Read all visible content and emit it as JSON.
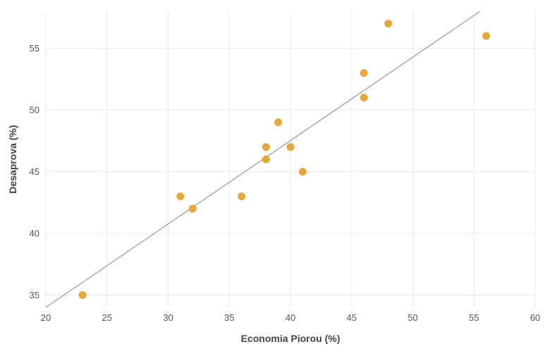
{
  "chart_data": {
    "type": "scatter",
    "title": "",
    "xlabel": "Economia Piorou (%)",
    "ylabel": "Desaprova (%)",
    "xlim": [
      20,
      60
    ],
    "ylim": [
      34,
      58
    ],
    "x_ticks": [
      20,
      25,
      30,
      35,
      40,
      45,
      50,
      55,
      60
    ],
    "y_ticks": [
      35,
      40,
      45,
      50,
      55
    ],
    "grid": true,
    "point_color": "#E8A838",
    "trendline_color": "#999999",
    "trendline": {
      "x": [
        20,
        55.5
      ],
      "y": [
        34,
        58
      ]
    },
    "series": [
      {
        "points": [
          {
            "x": 23,
            "y": 35
          },
          {
            "x": 31,
            "y": 43
          },
          {
            "x": 32,
            "y": 42
          },
          {
            "x": 36,
            "y": 43
          },
          {
            "x": 38,
            "y": 46
          },
          {
            "x": 38,
            "y": 47
          },
          {
            "x": 39,
            "y": 49
          },
          {
            "x": 40,
            "y": 47
          },
          {
            "x": 41,
            "y": 45
          },
          {
            "x": 46,
            "y": 51
          },
          {
            "x": 46,
            "y": 53
          },
          {
            "x": 48,
            "y": 57
          },
          {
            "x": 56,
            "y": 56
          }
        ]
      }
    ]
  }
}
